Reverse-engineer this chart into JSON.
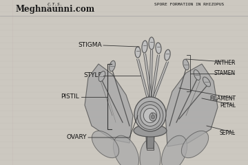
{
  "paper_color": "#c8c4bc",
  "bg_light": "#d0ccc4",
  "line_color": "#333333",
  "text_color": "#111111",
  "label_color": "#222222",
  "watermark": "Meghnaunni.com",
  "top_right_text": "SPORE FORMATION IN RHIZOPUS",
  "top_left_text": "C.T.S.",
  "labels_left": [
    "STIGMA",
    "STYLE",
    "PISTIL",
    "OVARY"
  ],
  "labels_right": [
    "ANTHER",
    "FILAMENT",
    "STAMEN",
    "PETAL",
    "SEPAL"
  ],
  "figsize": [
    3.6,
    2.4
  ],
  "dpi": 100,
  "draw_color": "#555555",
  "shade_dark": "#888888",
  "shade_mid": "#aaaaaa",
  "shade_light": "#c0c0c0"
}
